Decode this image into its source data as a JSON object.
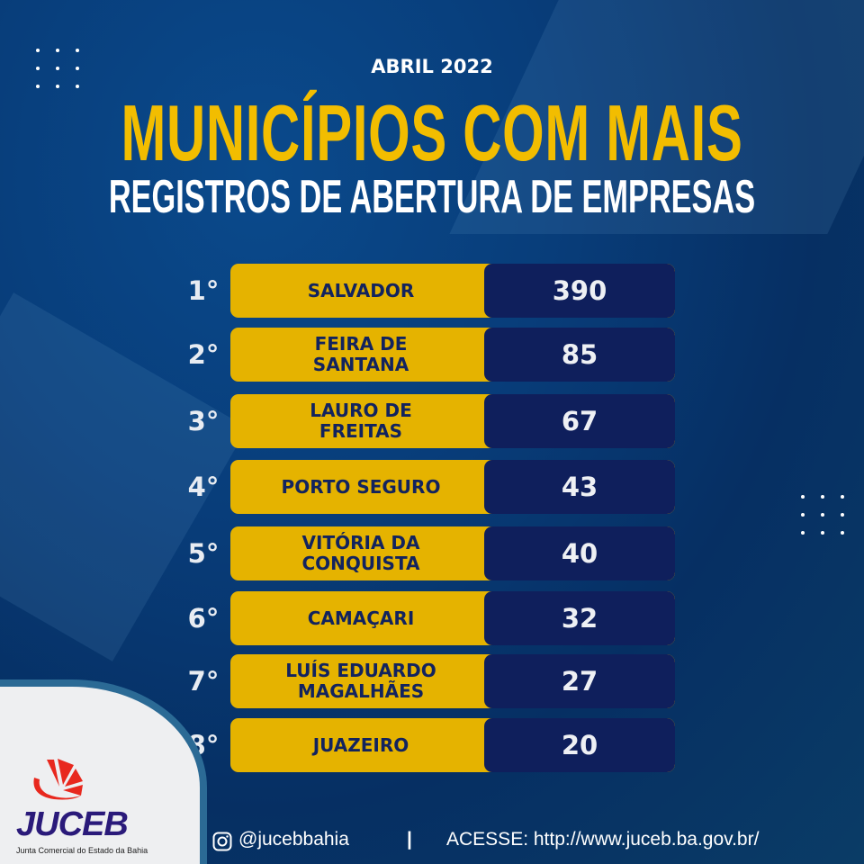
{
  "header": {
    "subtitle": "ABRIL 2022",
    "title_line1": "MUNICÍPIOS COM MAIS",
    "title_line2": "REGISTROS DE ABERTURA DE EMPRESAS"
  },
  "ranking": [
    {
      "rank": "1°",
      "name": "SALVADOR",
      "value": "390"
    },
    {
      "rank": "2°",
      "name": "FEIRA DE SANTANA",
      "value": "85"
    },
    {
      "rank": "3°",
      "name": "LAURO DE FREITAS",
      "value": "67"
    },
    {
      "rank": "4°",
      "name": "PORTO SEGURO",
      "value": "43"
    },
    {
      "rank": "5°",
      "name": "VITÓRIA DA CONQUISTA",
      "value": "40"
    },
    {
      "rank": "6°",
      "name": "CAMAÇARI",
      "value": "32"
    },
    {
      "rank": "7°",
      "name": "LUÍS EDUARDO MAGALHÃES",
      "value": "27"
    },
    {
      "rank": "8°",
      "name": "JUAZEIRO",
      "value": "20"
    }
  ],
  "logo": {
    "name": "JUCEB",
    "tagline": "Junta Comercial do Estado da Bahia"
  },
  "footer": {
    "instagram_icon": "instagram-icon",
    "instagram": "@jucebbahia",
    "separator": "|",
    "site": "ACESSE: http://www.juceb.ba.gov.br/"
  },
  "colors": {
    "yellow": "#e5b300",
    "navy": "#0f1f5c",
    "logo_red": "#e8281e",
    "logo_purple": "#2a1a7a"
  }
}
